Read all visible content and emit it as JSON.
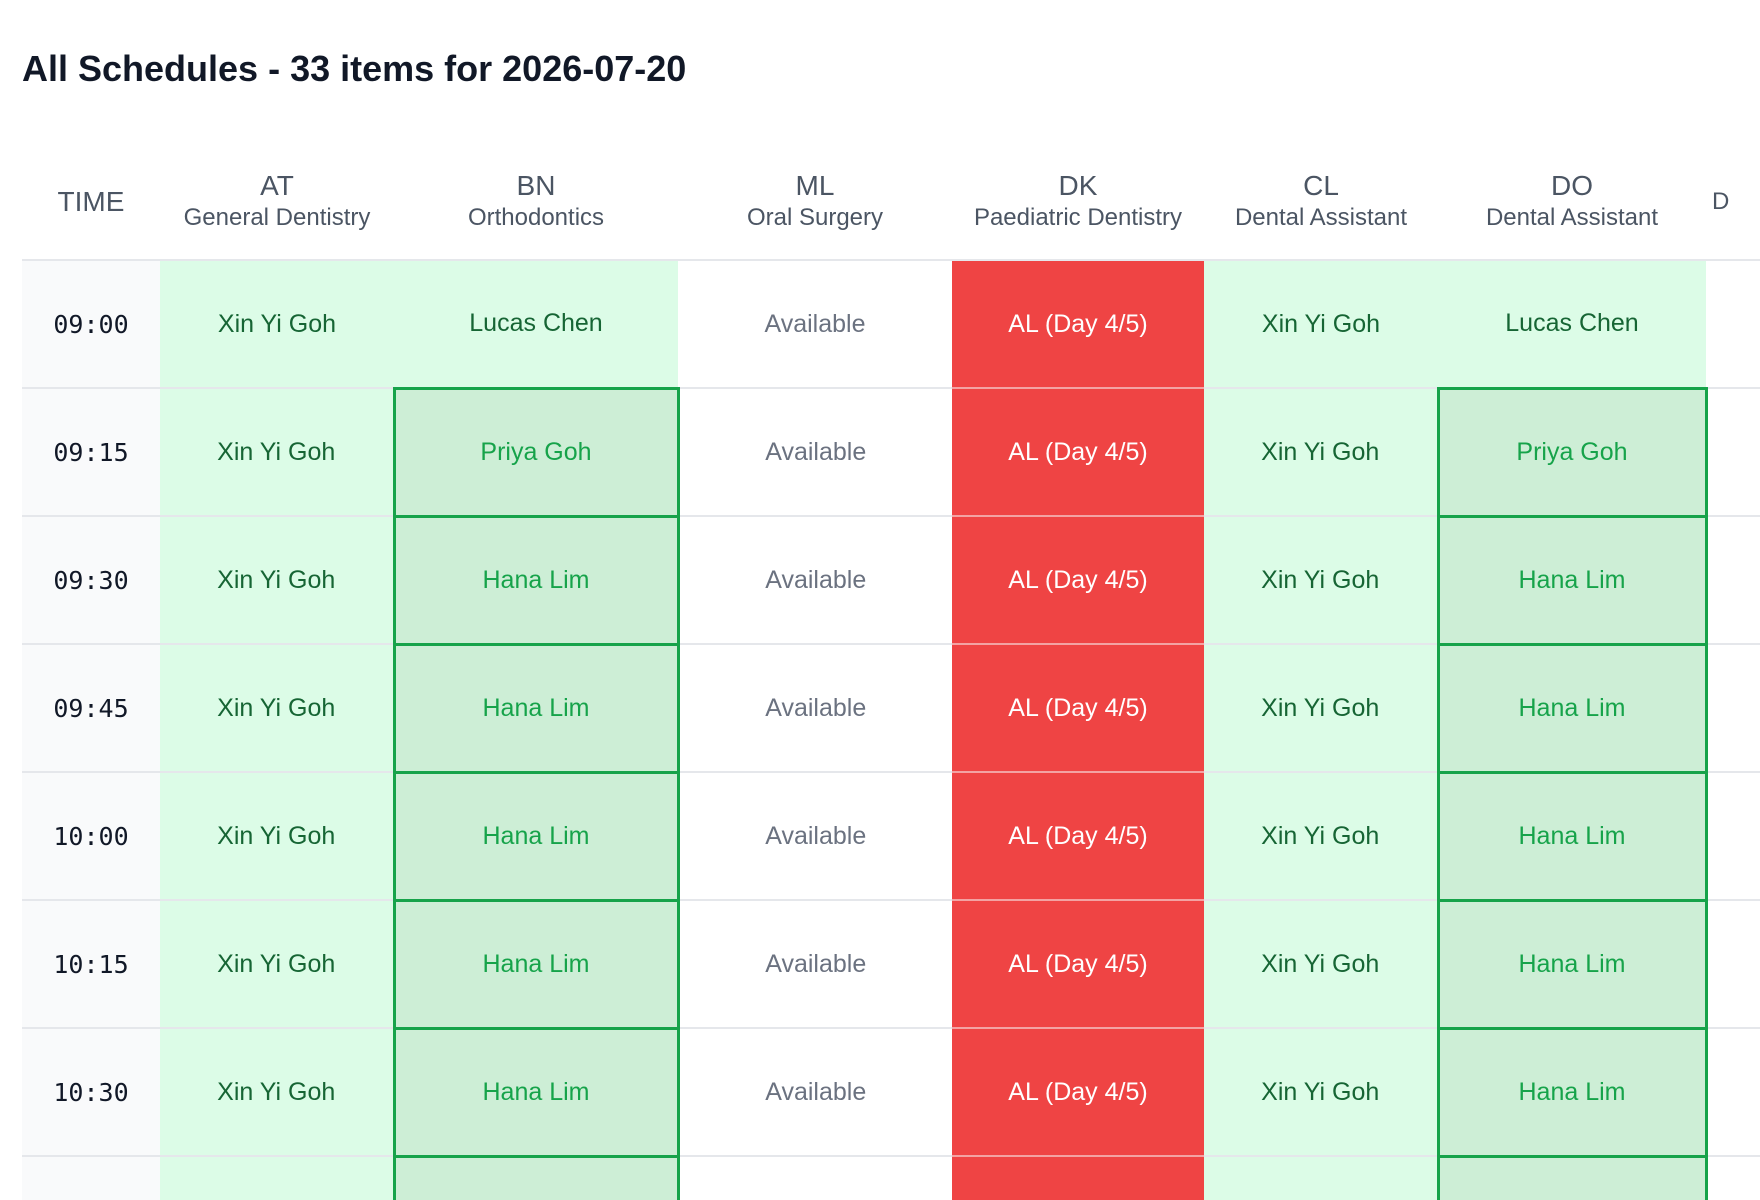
{
  "page": {
    "title": "All Schedules - 33 items for 2026-07-20"
  },
  "table": {
    "time_header": "TIME",
    "columns": [
      {
        "code": "AT",
        "specialty": "General Dentistry"
      },
      {
        "code": "BN",
        "specialty": "Orthodontics"
      },
      {
        "code": "ML",
        "specialty": "Oral Surgery"
      },
      {
        "code": "DK",
        "specialty": "Paediatric Dentistry"
      },
      {
        "code": "CL",
        "specialty": "Dental Assistant"
      },
      {
        "code": "DO",
        "specialty": "Dental Assistant"
      },
      {
        "code": "",
        "specialty": "D"
      }
    ],
    "rows": [
      {
        "time": "09:00",
        "cells": [
          {
            "text": "Xin Yi Goh",
            "status": "assigned"
          },
          {
            "text": "Lucas Chen",
            "status": "assigned"
          },
          {
            "text": "Available",
            "status": "available"
          },
          {
            "text": "AL (Day 4/5)",
            "status": "leave"
          },
          {
            "text": "Xin Yi Goh",
            "status": "assigned"
          },
          {
            "text": "Lucas Chen",
            "status": "assigned"
          },
          {
            "text": "",
            "status": "empty"
          }
        ]
      },
      {
        "time": "09:15",
        "cells": [
          {
            "text": "Xin Yi Goh",
            "status": "assigned"
          },
          {
            "text": "Priya Goh",
            "status": "alt"
          },
          {
            "text": "Available",
            "status": "available"
          },
          {
            "text": "AL (Day 4/5)",
            "status": "leave"
          },
          {
            "text": "Xin Yi Goh",
            "status": "assigned"
          },
          {
            "text": "Priya Goh",
            "status": "alt"
          },
          {
            "text": "",
            "status": "empty"
          }
        ]
      },
      {
        "time": "09:30",
        "cells": [
          {
            "text": "Xin Yi Goh",
            "status": "assigned"
          },
          {
            "text": "Hana Lim",
            "status": "alt"
          },
          {
            "text": "Available",
            "status": "available"
          },
          {
            "text": "AL (Day 4/5)",
            "status": "leave"
          },
          {
            "text": "Xin Yi Goh",
            "status": "assigned"
          },
          {
            "text": "Hana Lim",
            "status": "alt"
          },
          {
            "text": "",
            "status": "empty"
          }
        ]
      },
      {
        "time": "09:45",
        "cells": [
          {
            "text": "Xin Yi Goh",
            "status": "assigned"
          },
          {
            "text": "Hana Lim",
            "status": "alt"
          },
          {
            "text": "Available",
            "status": "available"
          },
          {
            "text": "AL (Day 4/5)",
            "status": "leave"
          },
          {
            "text": "Xin Yi Goh",
            "status": "assigned"
          },
          {
            "text": "Hana Lim",
            "status": "alt"
          },
          {
            "text": "",
            "status": "empty"
          }
        ]
      },
      {
        "time": "10:00",
        "cells": [
          {
            "text": "Xin Yi Goh",
            "status": "assigned"
          },
          {
            "text": "Hana Lim",
            "status": "alt"
          },
          {
            "text": "Available",
            "status": "available"
          },
          {
            "text": "AL (Day 4/5)",
            "status": "leave"
          },
          {
            "text": "Xin Yi Goh",
            "status": "assigned"
          },
          {
            "text": "Hana Lim",
            "status": "alt"
          },
          {
            "text": "",
            "status": "empty"
          }
        ]
      },
      {
        "time": "10:15",
        "cells": [
          {
            "text": "Xin Yi Goh",
            "status": "assigned"
          },
          {
            "text": "Hana Lim",
            "status": "alt"
          },
          {
            "text": "Available",
            "status": "available"
          },
          {
            "text": "AL (Day 4/5)",
            "status": "leave"
          },
          {
            "text": "Xin Yi Goh",
            "status": "assigned"
          },
          {
            "text": "Hana Lim",
            "status": "alt"
          },
          {
            "text": "",
            "status": "empty"
          }
        ]
      },
      {
        "time": "10:30",
        "cells": [
          {
            "text": "Xin Yi Goh",
            "status": "assigned"
          },
          {
            "text": "Hana Lim",
            "status": "alt"
          },
          {
            "text": "Available",
            "status": "available"
          },
          {
            "text": "AL (Day 4/5)",
            "status": "leave"
          },
          {
            "text": "Xin Yi Goh",
            "status": "assigned"
          },
          {
            "text": "Hana Lim",
            "status": "alt"
          },
          {
            "text": "",
            "status": "empty"
          }
        ]
      },
      {
        "time": "",
        "cells": [
          {
            "text": "",
            "status": "assigned"
          },
          {
            "text": "",
            "status": "alt"
          },
          {
            "text": "",
            "status": "available"
          },
          {
            "text": "",
            "status": "leave"
          },
          {
            "text": "",
            "status": "assigned"
          },
          {
            "text": "",
            "status": "alt"
          },
          {
            "text": "",
            "status": "empty"
          }
        ]
      }
    ]
  },
  "colors": {
    "assigned_bg": "#dcfce7",
    "assigned_text": "#166534",
    "alt_bg": "#cdeed6",
    "alt_border": "#16a34a",
    "leave_bg": "#ef4444",
    "available_text": "#6b7280",
    "time_bg": "#f9fafb"
  }
}
